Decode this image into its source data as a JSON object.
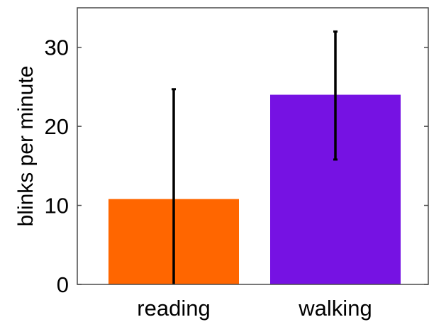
{
  "chart_data": {
    "type": "bar",
    "title": "",
    "xlabel": "",
    "ylabel": "blinks per minute",
    "categories": [
      "reading",
      "walking"
    ],
    "values": [
      10.8,
      24.0
    ],
    "error_low": [
      0,
      15.8
    ],
    "error_high": [
      24.7,
      32.0
    ],
    "colors": [
      "#ff6600",
      "#7612e3"
    ],
    "ylim": [
      0,
      35
    ],
    "yticks": [
      0,
      10,
      20,
      30
    ],
    "ytick_labels": [
      "0",
      "10",
      "20",
      "30"
    ],
    "grid": false,
    "legend": "none"
  }
}
